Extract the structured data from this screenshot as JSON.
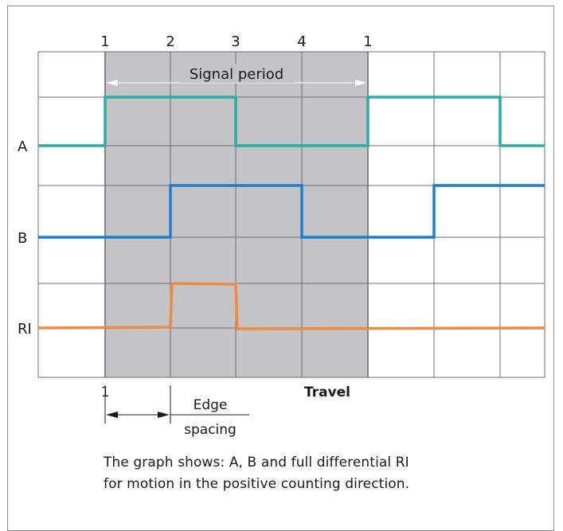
{
  "diagram": {
    "period_markers": [
      "1",
      "2",
      "3",
      "4",
      "1"
    ],
    "signal_period_label": "Signal period",
    "travel_label": "Travel",
    "edge_spacing_label_line1": "Edge",
    "edge_spacing_label_line2": "spacing",
    "edge_spacing_marker": "1",
    "signals": [
      {
        "name": "A",
        "color": "#2aaca8",
        "levels": [
          "low",
          "high",
          "high",
          "low",
          "low",
          "high",
          "high",
          "low"
        ]
      },
      {
        "name": "B",
        "color": "#1b7fce",
        "levels": [
          "low",
          "low",
          "high",
          "high",
          "low",
          "low",
          "high",
          "high"
        ]
      },
      {
        "name": "RI",
        "color": "#ef8a45",
        "levels": [
          "low",
          "low",
          "high",
          "low",
          "low",
          "low",
          "low",
          "low"
        ]
      }
    ],
    "colors": {
      "shaded_period": "#c4c4c7",
      "grid": "#6e6e6e",
      "text": "#1a1a1a"
    }
  },
  "caption": {
    "line1": "The graph shows: A, B and full differential RI",
    "line2": "for motion in the positive counting direction."
  }
}
